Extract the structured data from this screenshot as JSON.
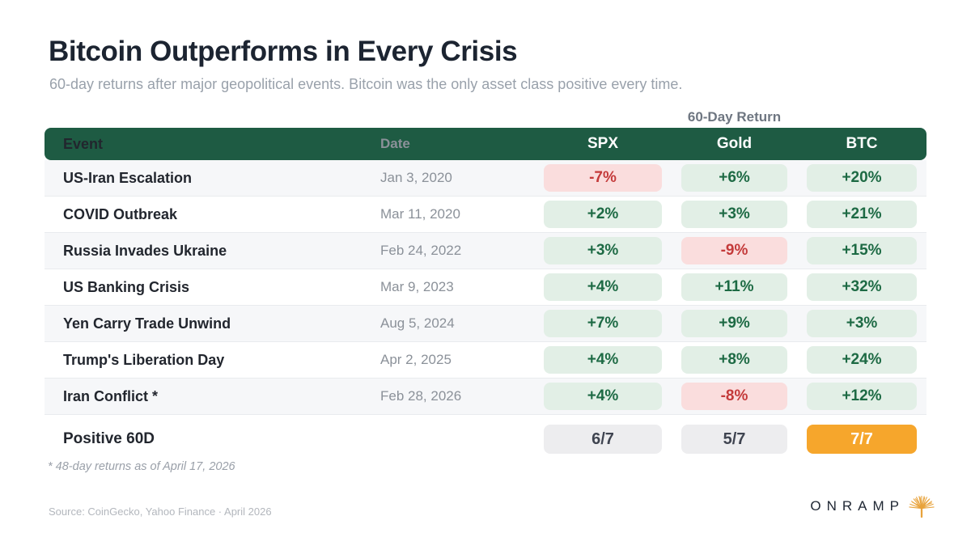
{
  "header": {
    "title": "Bitcoin Outperforms in Every Crisis",
    "subtitle": "60-day returns after major geopolitical events. Bitcoin was the only asset class positive every time.",
    "group_label": "60-Day Return"
  },
  "table": {
    "columns": [
      "Event",
      "Date",
      "SPX",
      "Gold",
      "BTC"
    ],
    "rows": [
      {
        "event": "US-Iran Escalation",
        "date": "Jan 3, 2020",
        "returns": [
          {
            "value": "-7%",
            "status": "negative"
          },
          {
            "value": "+6%",
            "status": "positive"
          },
          {
            "value": "+20%",
            "status": "positive"
          }
        ]
      },
      {
        "event": "COVID Outbreak",
        "date": "Mar 11, 2020",
        "returns": [
          {
            "value": "+2%",
            "status": "positive"
          },
          {
            "value": "+3%",
            "status": "positive"
          },
          {
            "value": "+21%",
            "status": "positive"
          }
        ]
      },
      {
        "event": "Russia Invades Ukraine",
        "date": "Feb 24, 2022",
        "returns": [
          {
            "value": "+3%",
            "status": "positive"
          },
          {
            "value": "-9%",
            "status": "negative"
          },
          {
            "value": "+15%",
            "status": "positive"
          }
        ]
      },
      {
        "event": "US Banking Crisis",
        "date": "Mar 9, 2023",
        "returns": [
          {
            "value": "+4%",
            "status": "positive"
          },
          {
            "value": "+11%",
            "status": "positive"
          },
          {
            "value": "+32%",
            "status": "positive"
          }
        ]
      },
      {
        "event": "Yen Carry Trade Unwind",
        "date": "Aug 5, 2024",
        "returns": [
          {
            "value": "+7%",
            "status": "positive"
          },
          {
            "value": "+9%",
            "status": "positive"
          },
          {
            "value": "+3%",
            "status": "positive"
          }
        ]
      },
      {
        "event": "Trump's Liberation Day",
        "date": "Apr 2, 2025",
        "returns": [
          {
            "value": "+4%",
            "status": "positive"
          },
          {
            "value": "+8%",
            "status": "positive"
          },
          {
            "value": "+24%",
            "status": "positive"
          }
        ]
      },
      {
        "event": "Iran Conflict *",
        "date": "Feb 28, 2026",
        "returns": [
          {
            "value": "+4%",
            "status": "positive"
          },
          {
            "value": "-8%",
            "status": "negative"
          },
          {
            "value": "+12%",
            "status": "positive"
          }
        ]
      }
    ],
    "summary": {
      "label": "Positive 60D",
      "values": [
        {
          "value": "6/7",
          "status": "neutral"
        },
        {
          "value": "5/7",
          "status": "neutral"
        },
        {
          "value": "7/7",
          "status": "highlight"
        }
      ]
    },
    "footnote": "* 48-day returns as of April 17, 2026"
  },
  "footer": {
    "source": "Source: CoinGecko, Yahoo Finance · April 2026",
    "brand": "ONRAMP",
    "brand_icon": "tree-icon"
  },
  "colors": {
    "header_green": "#1e5b43",
    "positive_bg": "#e2efe6",
    "positive_text": "#1d6a44",
    "negative_bg": "#fadddd",
    "negative_text": "#c43a3a",
    "neutral_bg": "#ededef",
    "highlight_orange": "#f6a62c",
    "brand_amber": "#e8a33c"
  },
  "chart_data": {
    "type": "table",
    "title": "Bitcoin Outperforms in Every Crisis",
    "subtitle": "60-day returns after major geopolitical events. Bitcoin was the only asset class positive every time.",
    "group_header": "60-Day Return",
    "columns": [
      "Event",
      "Date",
      "SPX",
      "Gold",
      "BTC"
    ],
    "categories": [
      "US-Iran Escalation",
      "COVID Outbreak",
      "Russia Invades Ukraine",
      "US Banking Crisis",
      "Yen Carry Trade Unwind",
      "Trump's Liberation Day",
      "Iran Conflict *"
    ],
    "dates": [
      "Jan 3, 2020",
      "Mar 11, 2020",
      "Feb 24, 2022",
      "Mar 9, 2023",
      "Aug 5, 2024",
      "Apr 2, 2025",
      "Feb 28, 2026"
    ],
    "series": [
      {
        "name": "SPX",
        "values": [
          -7,
          2,
          3,
          4,
          7,
          4,
          4
        ],
        "unit": "%"
      },
      {
        "name": "Gold",
        "values": [
          6,
          3,
          -9,
          11,
          9,
          8,
          -8
        ],
        "unit": "%"
      },
      {
        "name": "BTC",
        "values": [
          20,
          21,
          15,
          32,
          3,
          24,
          12
        ],
        "unit": "%"
      }
    ],
    "summary_row": {
      "label": "Positive 60D",
      "SPX": "6/7",
      "Gold": "5/7",
      "BTC": "7/7"
    },
    "footnote": "* 48-day returns as of April 17, 2026",
    "source": "Source: CoinGecko, Yahoo Finance · April 2026"
  }
}
